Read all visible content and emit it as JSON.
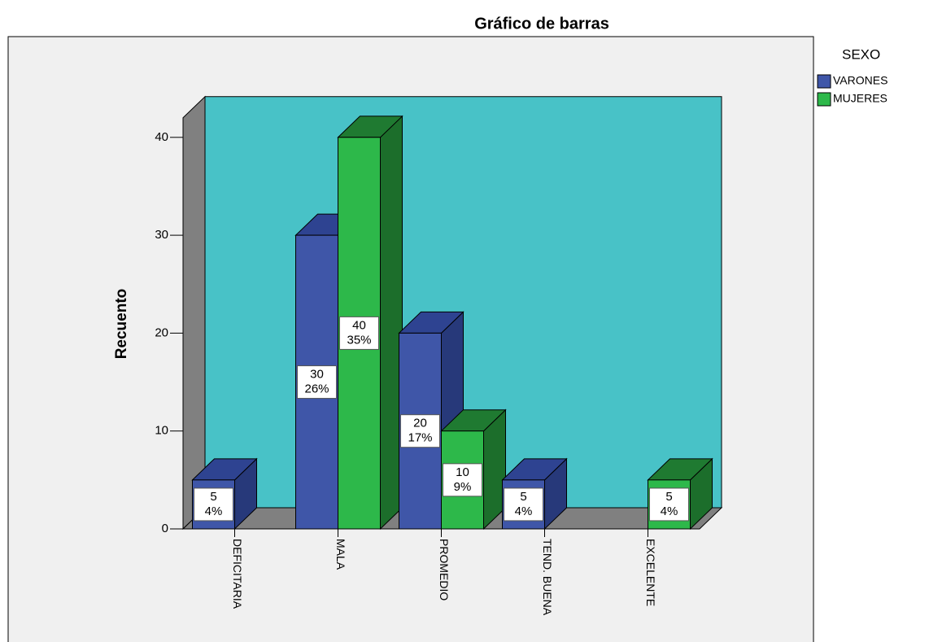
{
  "chart_data": {
    "type": "bar3d",
    "title": "Gráfico de barras",
    "ylabel": "Recuento",
    "categories": [
      "DEFICITARIA",
      "MALA",
      "PROMEDIO",
      "TEND. BUENA",
      "EXCELENTE"
    ],
    "legend_title": "SEXO",
    "series": [
      {
        "name": "VARONES",
        "color": "#3f56a8",
        "side_color": "#27397a",
        "top_color": "#2e4391",
        "values": [
          5,
          30,
          20,
          5,
          null
        ],
        "percents": [
          4,
          26,
          17,
          4,
          null
        ],
        "percent_labels": [
          "4%",
          "26%",
          "17%",
          "4%",
          null
        ]
      },
      {
        "name": "MUJERES",
        "color": "#2db84a",
        "side_color": "#1c6e2b",
        "top_color": "#1f7a31",
        "values": [
          null,
          40,
          10,
          null,
          5
        ],
        "percents": [
          null,
          35,
          9,
          null,
          4
        ],
        "percent_labels": [
          null,
          "35%",
          "9%",
          null,
          "4%"
        ]
      }
    ],
    "ylim": [
      0,
      42
    ],
    "yticks": [
      0,
      10,
      20,
      30,
      40
    ],
    "wall_color": "#48c2c7",
    "floor_color": "#808080"
  }
}
